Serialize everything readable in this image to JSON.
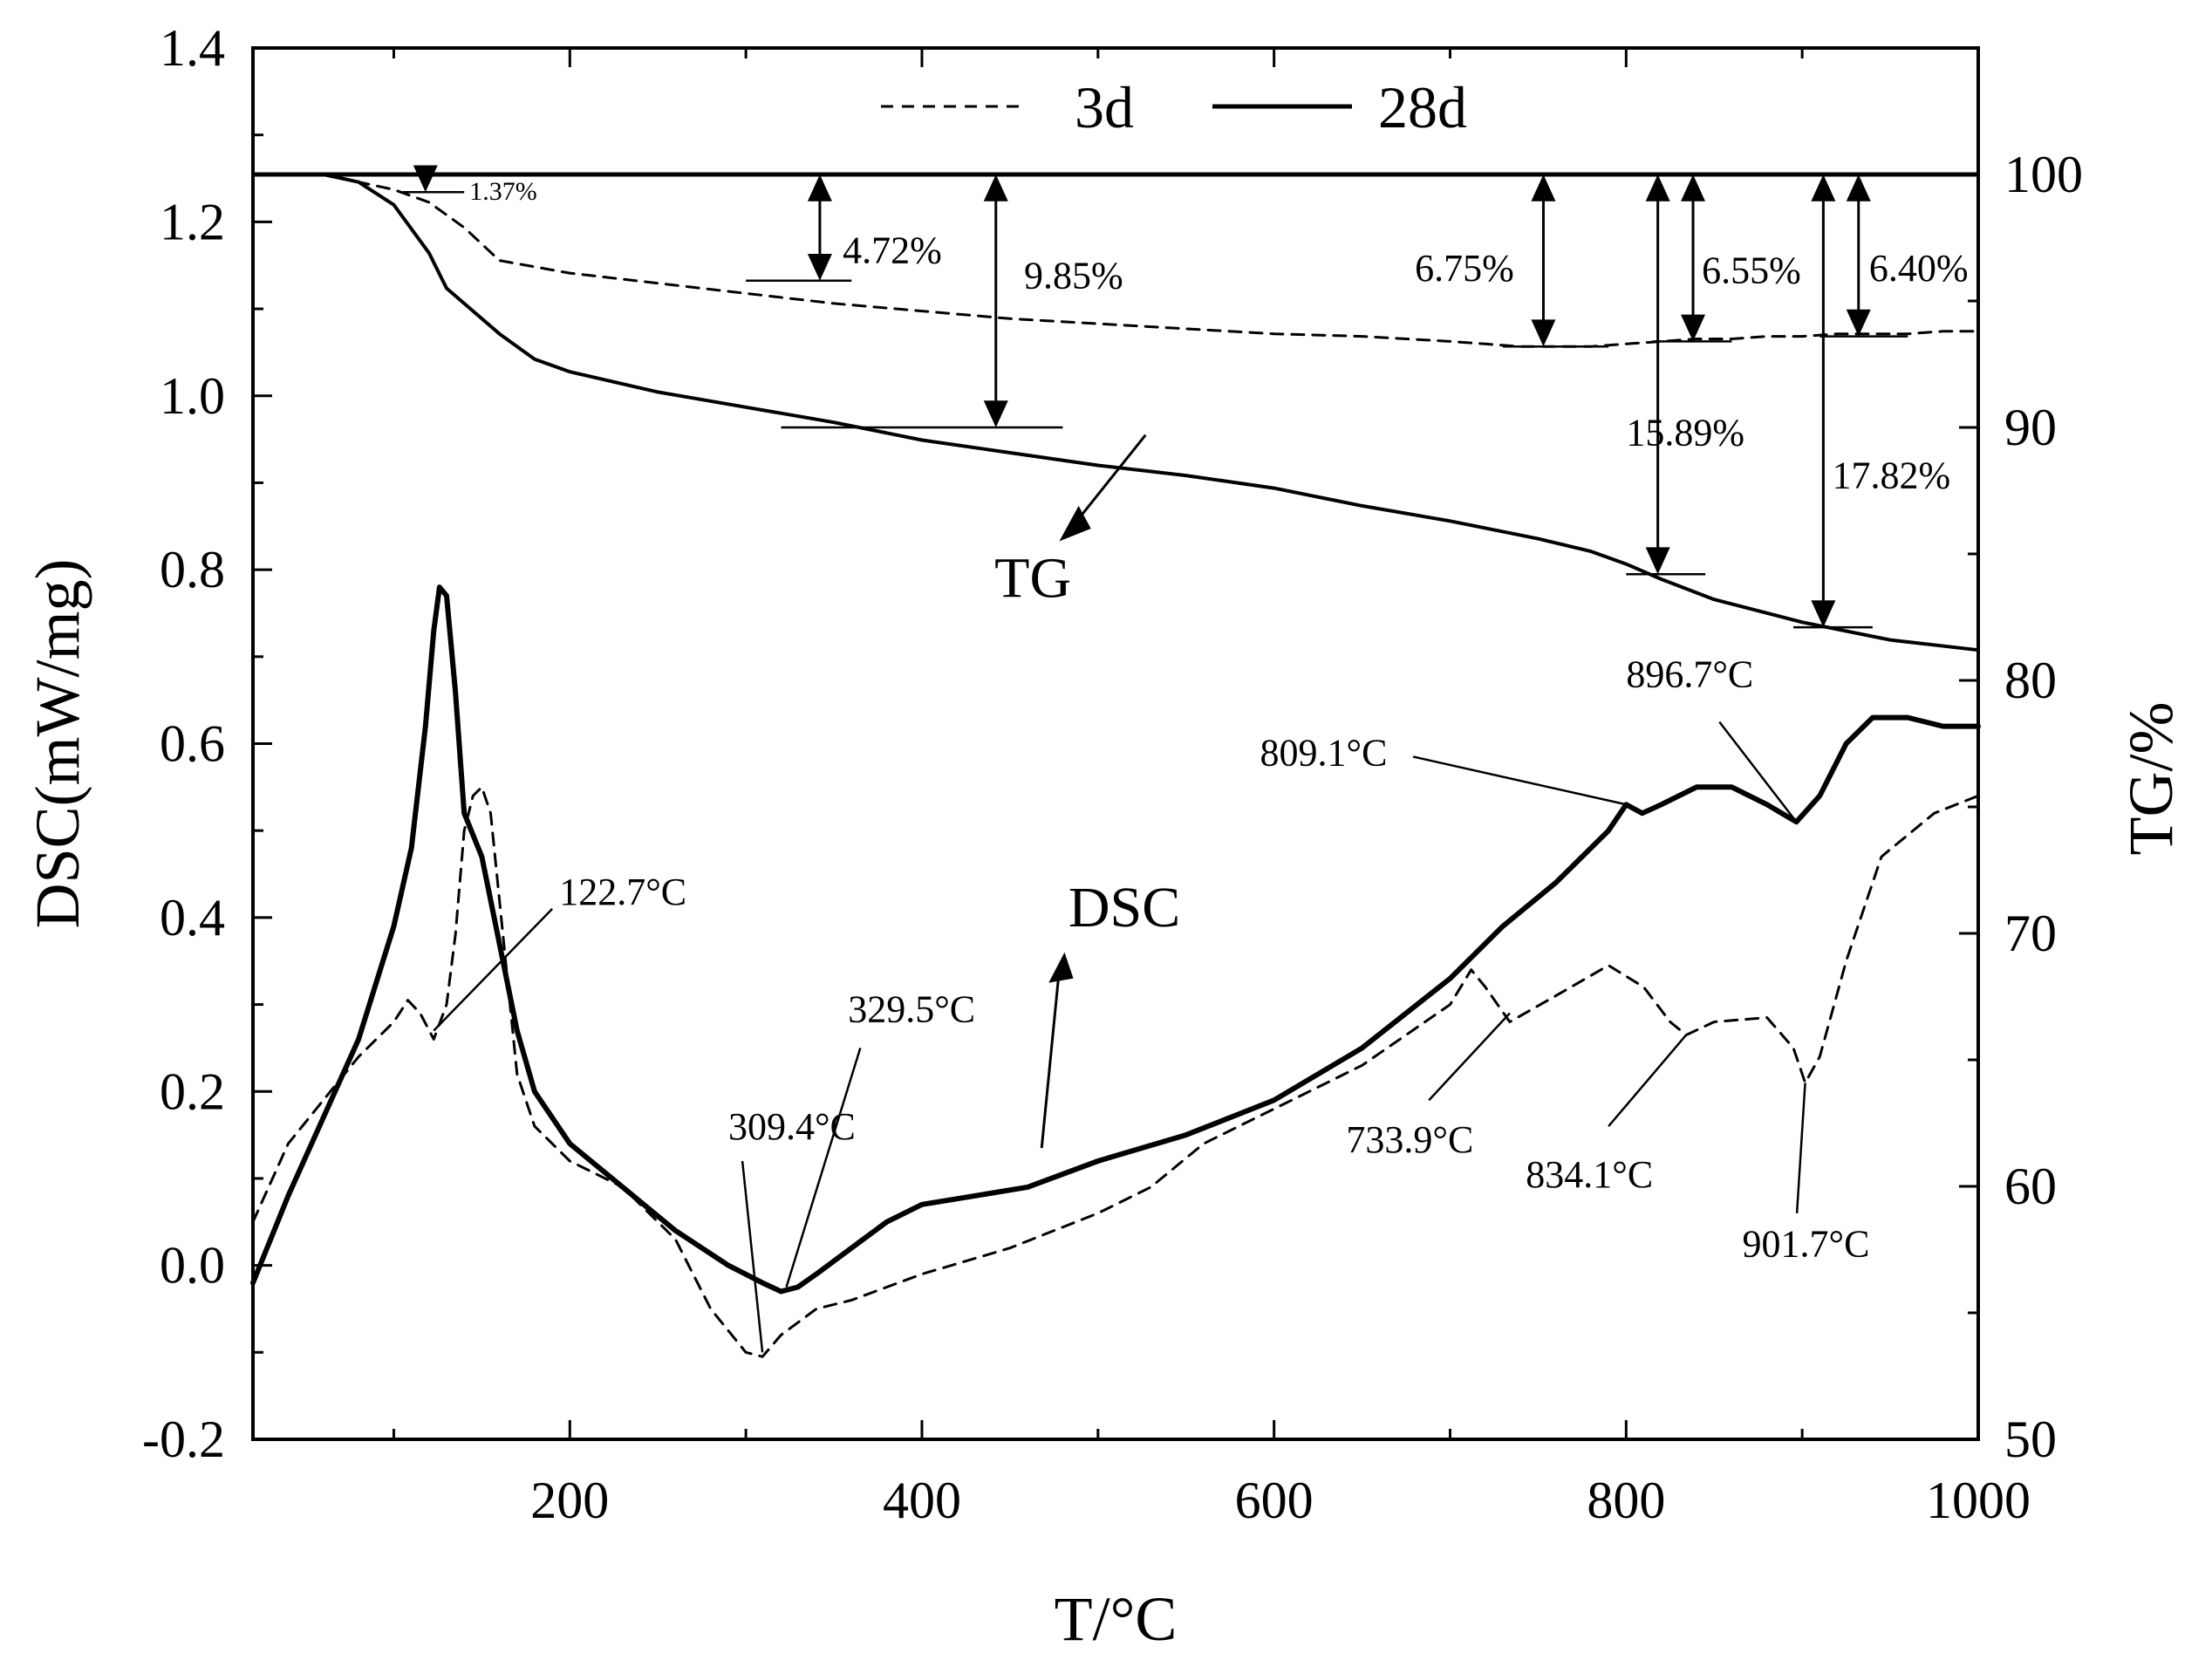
{
  "chart_data": {
    "type": "line",
    "xlabel": "T/°C",
    "ylabel_left": "DSC(mW/mg)",
    "ylabel_right": "TG/%",
    "xlim": [
      20,
      1000
    ],
    "ylim_left": [
      -0.2,
      1.4
    ],
    "ylim_right": [
      50,
      105
    ],
    "x_ticks": [
      200,
      400,
      600,
      800,
      1000
    ],
    "y_ticks_left": [
      -0.2,
      0.0,
      0.2,
      0.4,
      0.6,
      0.8,
      1.0,
      1.2,
      1.4
    ],
    "y_ticks_left_labels": [
      "-0.2",
      "0.0",
      "0.2",
      "0.4",
      "0.6",
      "0.8",
      "1.0",
      "1.2",
      "1.4"
    ],
    "y_ticks_right": [
      50,
      60,
      70,
      80,
      90,
      100
    ],
    "y_ticks_right_labels": [
      "50",
      "60",
      "70",
      "80",
      "90",
      "100"
    ],
    "grid": false,
    "legend": {
      "position": "top-center",
      "entries": [
        {
          "label": "3d",
          "style": "dashed"
        },
        {
          "label": "28d",
          "style": "solid"
        }
      ]
    },
    "series": [
      {
        "name": "3d",
        "kind": "TG",
        "axis": "right",
        "style": "dashed",
        "x": [
          20,
          60,
          100,
          120,
          140,
          160,
          200,
          250,
          300,
          350,
          400,
          450,
          500,
          550,
          600,
          650,
          700,
          720,
          740,
          760,
          780,
          800,
          820,
          840,
          860,
          880,
          900,
          920,
          940,
          960,
          980,
          1000
        ],
        "y": [
          100,
          100,
          99.4,
          98.9,
          97.9,
          96.6,
          96.1,
          95.7,
          95.3,
          94.9,
          94.6,
          94.3,
          94.1,
          93.9,
          93.7,
          93.6,
          93.4,
          93.3,
          93.2,
          93.2,
          93.2,
          93.3,
          93.4,
          93.5,
          93.5,
          93.6,
          93.6,
          93.7,
          93.7,
          93.7,
          93.8,
          93.8
        ]
      },
      {
        "name": "28d",
        "kind": "TG",
        "axis": "right",
        "style": "solid",
        "x": [
          20,
          60,
          80,
          100,
          120,
          130,
          140,
          160,
          180,
          200,
          250,
          300,
          350,
          400,
          450,
          500,
          550,
          600,
          650,
          700,
          750,
          780,
          800,
          820,
          850,
          900,
          950,
          1000
        ],
        "y": [
          100,
          100,
          99.7,
          98.8,
          96.9,
          95.5,
          94.9,
          93.7,
          92.7,
          92.2,
          91.4,
          90.8,
          90.2,
          89.5,
          89.0,
          88.5,
          88.1,
          87.6,
          86.9,
          86.3,
          85.6,
          85.1,
          84.6,
          84.0,
          83.2,
          82.3,
          81.6,
          81.2
        ]
      },
      {
        "name": "3d",
        "kind": "DSC",
        "axis": "left",
        "style": "dashed",
        "x": [
          20,
          40,
          60,
          80,
          100,
          108,
          115,
          122.7,
          130,
          135,
          140,
          145,
          150,
          155,
          160,
          165,
          170,
          180,
          200,
          230,
          260,
          280,
          300,
          309.4,
          320,
          340,
          360,
          400,
          450,
          500,
          530,
          560,
          600,
          650,
          700,
          712,
          720,
          733.9,
          760,
          790,
          810,
          825,
          834.1,
          850,
          880,
          895,
          901.7,
          910,
          925,
          945,
          975,
          1000
        ],
        "y": [
          0.05,
          0.14,
          0.19,
          0.24,
          0.28,
          0.305,
          0.29,
          0.26,
          0.3,
          0.38,
          0.5,
          0.54,
          0.55,
          0.52,
          0.42,
          0.32,
          0.22,
          0.16,
          0.12,
          0.09,
          0.03,
          -0.05,
          -0.1,
          -0.105,
          -0.08,
          -0.05,
          -0.04,
          -0.01,
          0.02,
          0.06,
          0.09,
          0.14,
          0.18,
          0.23,
          0.3,
          0.34,
          0.32,
          0.28,
          0.31,
          0.345,
          0.32,
          0.28,
          0.265,
          0.28,
          0.285,
          0.25,
          0.21,
          0.24,
          0.35,
          0.47,
          0.52,
          0.54
        ]
      },
      {
        "name": "28d",
        "kind": "DSC",
        "axis": "left",
        "style": "solid",
        "x": [
          20,
          40,
          60,
          80,
          100,
          110,
          118,
          122.7,
          126,
          130,
          135,
          140,
          150,
          160,
          170,
          180,
          200,
          230,
          260,
          290,
          309.4,
          320,
          329.5,
          340,
          360,
          380,
          400,
          430,
          460,
          500,
          550,
          600,
          650,
          700,
          730,
          760,
          790,
          800,
          809.1,
          820,
          840,
          860,
          880,
          896.7,
          910,
          925,
          940,
          960,
          980,
          1000
        ],
        "y": [
          -0.02,
          0.08,
          0.17,
          0.26,
          0.39,
          0.48,
          0.62,
          0.73,
          0.78,
          0.77,
          0.66,
          0.52,
          0.47,
          0.37,
          0.27,
          0.2,
          0.14,
          0.09,
          0.04,
          0.0,
          -0.02,
          -0.03,
          -0.025,
          -0.01,
          0.02,
          0.05,
          0.07,
          0.08,
          0.09,
          0.12,
          0.15,
          0.19,
          0.25,
          0.33,
          0.39,
          0.44,
          0.5,
          0.53,
          0.52,
          0.53,
          0.55,
          0.55,
          0.53,
          0.51,
          0.54,
          0.6,
          0.63,
          0.63,
          0.62,
          0.62
        ]
      }
    ],
    "curve_labels": [
      "TG",
      "DSC"
    ],
    "temperature_annotations": [
      "122.7°C",
      "309.4°C",
      "329.5°C",
      "733.9°C",
      "809.1°C",
      "834.1°C",
      "896.7°C",
      "901.7°C"
    ],
    "mass_loss_annotations": [
      "1.37%",
      "4.72%",
      "9.85%",
      "6.75%",
      "6.55%",
      "6.40%",
      "15.89%",
      "17.82%"
    ]
  }
}
